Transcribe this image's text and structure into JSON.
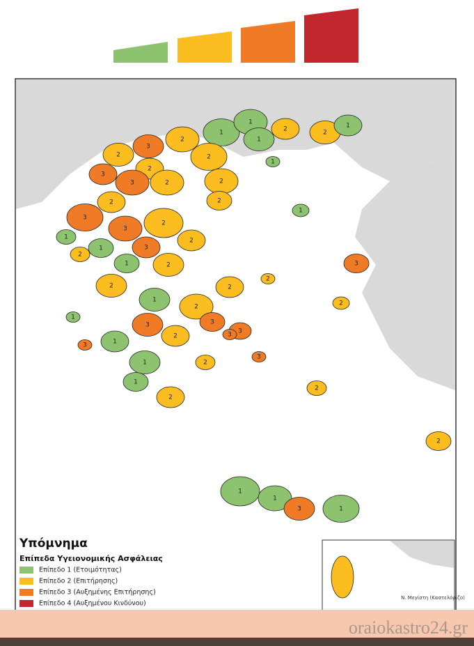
{
  "legend": {
    "title": "Υπόμνημα",
    "subtitle": "Επίπεδα Υγειονομικής Ασφάλειας",
    "levels": [
      {
        "label": "Επίπεδο 1 (Ετοιμότητας)",
        "color": "#8dc26f"
      },
      {
        "label": "Επίπεδο 2 (Επιτήρησης)",
        "color": "#fbbd1f"
      },
      {
        "label": "Επίπεδο 3 (Αυξημένης Επιτήρησης)",
        "color": "#ef7b26"
      },
      {
        "label": "Επίπεδο 4 (Αυξημένου Κινδύνου)",
        "color": "#c1272d"
      }
    ]
  },
  "inset": {
    "label": "Ν. Μεγίστη (Καστελόριζο)"
  },
  "regions": [
    1,
    1,
    1,
    2,
    2,
    1,
    1,
    2,
    3,
    2,
    2,
    2,
    3,
    3,
    2,
    2,
    2,
    3,
    2,
    3,
    2,
    1,
    1,
    2,
    3,
    2,
    1,
    2,
    2,
    1,
    2,
    2,
    3,
    3,
    3,
    2,
    1,
    1,
    2,
    1,
    2,
    3,
    1,
    3,
    2,
    3,
    2,
    2,
    1,
    1,
    3,
    1,
    2,
    1,
    3
  ],
  "watermark": "oraiokastro24.gr"
}
